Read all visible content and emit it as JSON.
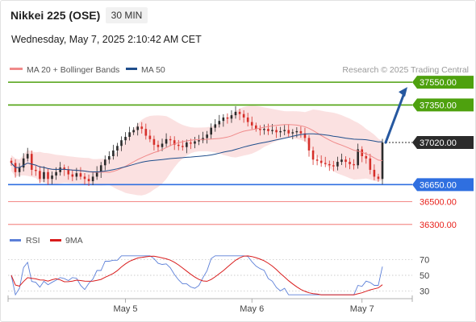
{
  "header": {
    "title": "Nikkei 225 (OSE)",
    "timeframe": "30 MIN",
    "datetime": "Wednesday, May 7, 2025 2:10:42 AM CET"
  },
  "legend": {
    "bollinger": {
      "label": "MA 20 + Bollinger Bands",
      "color": "#f08a8a"
    },
    "ma50": {
      "label": "MA 50",
      "color": "#1f4e8c"
    },
    "credit": "Research © 2025 Trading Central"
  },
  "chart_data": [
    {
      "type": "candlestick",
      "instrument": "Nikkei 225 (OSE)",
      "interval": "30 MIN",
      "ylim": [
        36150,
        37650
      ],
      "x_ticks": [
        "May 5",
        "May 6",
        "May 7"
      ],
      "x_tick_index": [
        28,
        59,
        86
      ],
      "n_bars": 92,
      "closes": [
        36840,
        36760,
        36800,
        36880,
        36920,
        36780,
        36770,
        36700,
        36760,
        36700,
        36730,
        36760,
        36800,
        36780,
        36740,
        36720,
        36750,
        36720,
        36700,
        36680,
        36720,
        36760,
        36820,
        36870,
        36900,
        36950,
        36990,
        37040,
        37070,
        37110,
        37130,
        37160,
        37140,
        37080,
        37050,
        37000,
        36980,
        37010,
        37050,
        37040,
        37000,
        36990,
        36980,
        37020,
        37010,
        37030,
        37040,
        37060,
        37090,
        37150,
        37180,
        37210,
        37240,
        37230,
        37260,
        37290,
        37270,
        37240,
        37200,
        37170,
        37140,
        37130,
        37140,
        37120,
        37130,
        37110,
        37120,
        37130,
        37100,
        37110,
        37120,
        37100,
        37060,
        36950,
        36870,
        36860,
        36840,
        36830,
        36820,
        36810,
        36850,
        36870,
        36850,
        36830,
        36820,
        36960,
        36900,
        36880,
        36780,
        36720,
        36700,
        37020
      ],
      "levels": [
        {
          "label": "37550.00",
          "value": 37550,
          "color": "#4ea10e",
          "style": "tag"
        },
        {
          "label": "37350.00",
          "value": 37350,
          "color": "#4ea10e",
          "style": "tag"
        },
        {
          "label": "37020.00",
          "value": 37020,
          "color": "#2b2b2b",
          "style": "tag"
        },
        {
          "label": "36650.00",
          "value": 36650,
          "color": "#2f6fe0",
          "style": "tag"
        },
        {
          "label": "36500.00",
          "value": 36500,
          "color": "#e8211b",
          "style": "text"
        },
        {
          "label": "36300.00",
          "value": 36300,
          "color": "#e8211b",
          "style": "text"
        }
      ],
      "arrow": {
        "from": 37020,
        "to": 37550,
        "color": "#2658a0"
      },
      "colors": {
        "up": "#2b2b2b",
        "down": "#d6302a",
        "bands": "#f7c9c9",
        "ma20": "#f08a8a",
        "ma50": "#1f4e8c"
      }
    },
    {
      "type": "line",
      "name": "RSI",
      "ylim": [
        20,
        80
      ],
      "ticks": [
        70,
        50,
        30
      ],
      "series": [
        {
          "name": "RSI",
          "color": "#5b7fd8"
        },
        {
          "name": "9MA",
          "color": "#d91c1c"
        }
      ]
    }
  ],
  "rsi_legend": {
    "rsi": "RSI",
    "ma9": "9MA"
  }
}
